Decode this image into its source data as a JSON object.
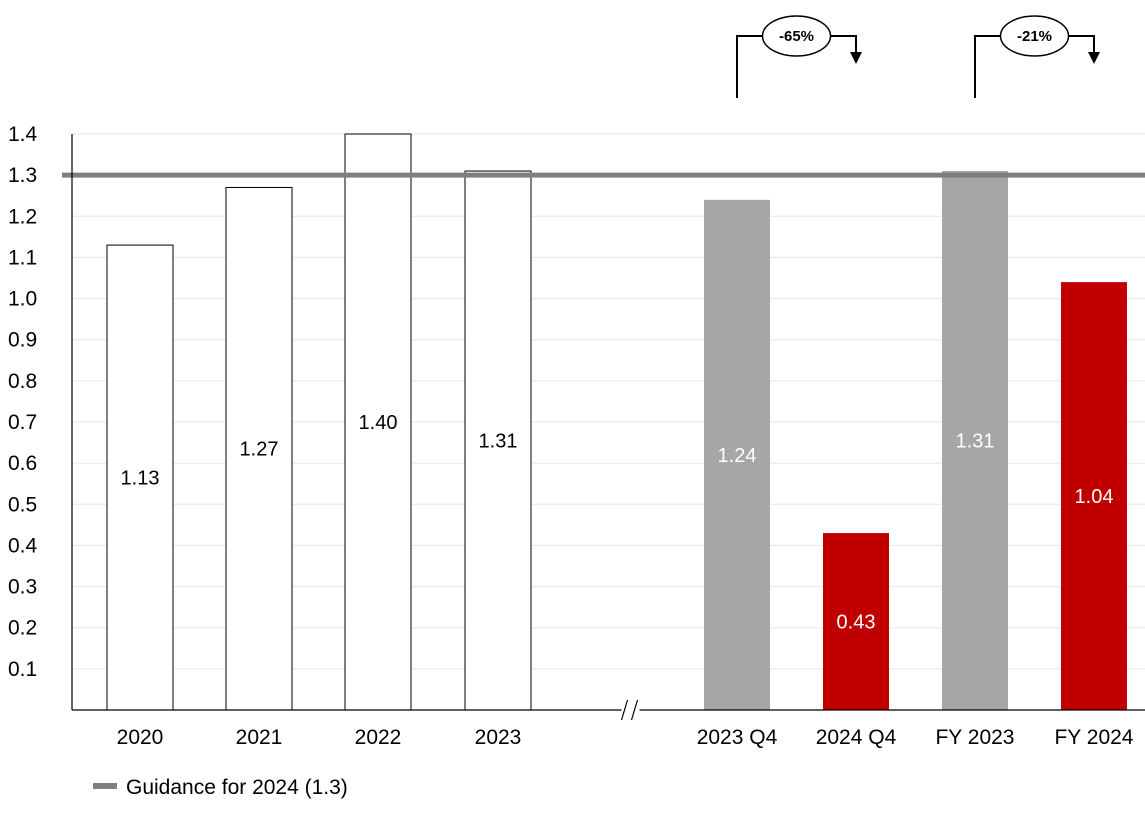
{
  "chart_data": {
    "type": "bar",
    "title": "",
    "xlabel": "",
    "ylabel": "",
    "ylim": [
      0,
      1.4
    ],
    "y_ticks": [
      "0.1",
      "0.2",
      "0.3",
      "0.4",
      "0.5",
      "0.6",
      "0.7",
      "0.8",
      "0.9",
      "1.0",
      "1.1",
      "1.2",
      "1.3",
      "1.4"
    ],
    "grid": true,
    "categories": [
      "2020",
      "2021",
      "2022",
      "2023",
      "2023 Q4",
      "2024 Q4",
      "FY 2023",
      "FY 2024"
    ],
    "values": [
      1.13,
      1.27,
      1.4,
      1.31,
      1.24,
      0.43,
      1.31,
      1.04
    ],
    "value_labels": [
      "1.13",
      "1.27",
      "1.40",
      "1.31",
      "1.24",
      "0.43",
      "1.31",
      "1.04"
    ],
    "bar_styles": [
      "outline",
      "outline",
      "outline",
      "outline",
      "gray",
      "red",
      "gray",
      "red"
    ],
    "colors": {
      "outline_fill": "#ffffff",
      "outline_stroke": "#000000",
      "gray": "#a6a6a6",
      "red": "#c00000",
      "guidance_line": "#7f7f7f",
      "grid": "#e6e6e6"
    },
    "axis_break_after_index": 3,
    "reference_line": {
      "value": 1.3,
      "label": "Guidance for 2024 (1.3)"
    },
    "annotations": [
      {
        "from_index": 4,
        "to_index": 5,
        "text": "-65%"
      },
      {
        "from_index": 6,
        "to_index": 7,
        "text": "-21%"
      }
    ],
    "legend": {
      "position": "bottom-left",
      "entries": [
        "Guidance for 2024 (1.3)"
      ]
    }
  }
}
